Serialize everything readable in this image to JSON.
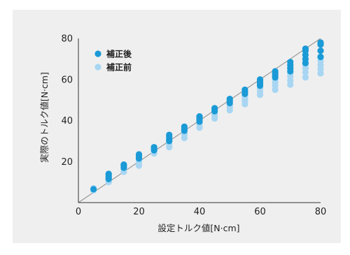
{
  "chart_data": {
    "type": "scatter",
    "xlabel": "設定トルク値[N·cm]",
    "ylabel": "実際のトルク値[N·cm]",
    "xlim": [
      0,
      80
    ],
    "ylim": [
      0,
      80
    ],
    "xticks": [
      0,
      20,
      40,
      60,
      80
    ],
    "yticks": [
      20,
      40,
      60,
      80
    ],
    "grid": false,
    "legend_position": "top-left",
    "reference_line": {
      "x": [
        0,
        80
      ],
      "y": [
        0,
        80
      ]
    },
    "series": [
      {
        "name": "補正後",
        "color": "#1a9ad6",
        "points": [
          [
            5,
            6.5
          ],
          [
            10,
            11.5
          ],
          [
            10,
            12.5
          ],
          [
            10,
            13.5
          ],
          [
            10,
            14
          ],
          [
            15,
            17
          ],
          [
            15,
            18
          ],
          [
            15,
            18.5
          ],
          [
            20,
            21.5
          ],
          [
            20,
            22.5
          ],
          [
            20,
            23.5
          ],
          [
            25,
            25.5
          ],
          [
            25,
            26.5
          ],
          [
            25,
            27
          ],
          [
            30,
            30
          ],
          [
            30,
            31
          ],
          [
            30,
            32
          ],
          [
            30,
            33
          ],
          [
            35,
            35
          ],
          [
            35,
            36
          ],
          [
            35,
            37
          ],
          [
            40,
            39.5
          ],
          [
            40,
            40.5
          ],
          [
            40,
            41.5
          ],
          [
            40,
            42
          ],
          [
            45,
            44.5
          ],
          [
            45,
            45.5
          ],
          [
            45,
            46
          ],
          [
            50,
            48.5
          ],
          [
            50,
            49.5
          ],
          [
            50,
            50.5
          ],
          [
            55,
            53
          ],
          [
            55,
            54
          ],
          [
            55,
            55
          ],
          [
            60,
            57
          ],
          [
            60,
            58
          ],
          [
            60,
            59
          ],
          [
            60,
            60
          ],
          [
            65,
            61
          ],
          [
            65,
            62
          ],
          [
            65,
            63
          ],
          [
            65,
            64
          ],
          [
            70,
            64
          ],
          [
            70,
            65.5
          ],
          [
            70,
            67
          ],
          [
            70,
            68.5
          ],
          [
            75,
            68
          ],
          [
            75,
            70
          ],
          [
            75,
            72
          ],
          [
            75,
            74
          ],
          [
            75,
            75
          ],
          [
            80,
            71
          ],
          [
            80,
            74
          ],
          [
            80,
            77
          ],
          [
            80,
            78
          ]
        ]
      },
      {
        "name": "補正前",
        "color": "#a8d6f2",
        "points": [
          [
            5,
            6
          ],
          [
            5,
            7
          ],
          [
            10,
            10
          ],
          [
            10,
            11
          ],
          [
            10,
            12
          ],
          [
            15,
            15
          ],
          [
            15,
            16
          ],
          [
            15,
            17
          ],
          [
            20,
            18
          ],
          [
            20,
            19.5
          ],
          [
            20,
            20.5
          ],
          [
            20,
            21.5
          ],
          [
            25,
            24
          ],
          [
            25,
            25.5
          ],
          [
            30,
            27
          ],
          [
            30,
            28.5
          ],
          [
            30,
            30
          ],
          [
            30,
            31
          ],
          [
            35,
            31.5
          ],
          [
            35,
            33
          ],
          [
            35,
            34
          ],
          [
            40,
            36.5
          ],
          [
            40,
            38
          ],
          [
            40,
            39
          ],
          [
            45,
            41
          ],
          [
            45,
            42.5
          ],
          [
            45,
            43.5
          ],
          [
            50,
            45
          ],
          [
            50,
            46.5
          ],
          [
            50,
            47.5
          ],
          [
            55,
            48
          ],
          [
            55,
            49.5
          ],
          [
            55,
            50.5
          ],
          [
            55,
            52
          ],
          [
            60,
            52.5
          ],
          [
            60,
            54
          ],
          [
            60,
            55.5
          ],
          [
            60,
            57
          ],
          [
            65,
            55
          ],
          [
            65,
            57
          ],
          [
            65,
            58.5
          ],
          [
            65,
            60
          ],
          [
            70,
            57.5
          ],
          [
            70,
            59.5
          ],
          [
            70,
            61.5
          ],
          [
            70,
            63
          ],
          [
            75,
            61
          ],
          [
            75,
            63.5
          ],
          [
            75,
            65.5
          ],
          [
            75,
            67
          ],
          [
            75,
            69
          ],
          [
            80,
            63
          ],
          [
            80,
            65
          ],
          [
            80,
            67
          ],
          [
            80,
            69
          ],
          [
            80,
            71
          ]
        ]
      }
    ]
  }
}
